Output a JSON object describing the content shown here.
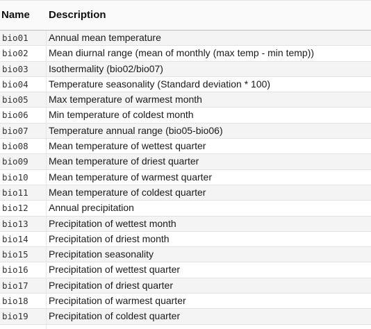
{
  "table": {
    "headers": {
      "name": "Name",
      "description": "Description"
    },
    "rows": [
      {
        "name": "bio01",
        "description": "Annual mean temperature"
      },
      {
        "name": "bio02",
        "description": "Mean diurnal range (mean of monthly (max temp - min temp))"
      },
      {
        "name": "bio03",
        "description": "Isothermality (bio02/bio07)"
      },
      {
        "name": "bio04",
        "description": "Temperature seasonality (Standard deviation * 100)"
      },
      {
        "name": "bio05",
        "description": "Max temperature of warmest month"
      },
      {
        "name": "bio06",
        "description": "Min temperature of coldest month"
      },
      {
        "name": "bio07",
        "description": "Temperature annual range (bio05-bio06)"
      },
      {
        "name": "bio08",
        "description": "Mean temperature of wettest quarter"
      },
      {
        "name": "bio09",
        "description": "Mean temperature of driest quarter"
      },
      {
        "name": "bio10",
        "description": "Mean temperature of warmest quarter"
      },
      {
        "name": "bio11",
        "description": "Mean temperature of coldest quarter"
      },
      {
        "name": "bio12",
        "description": "Annual precipitation"
      },
      {
        "name": "bio13",
        "description": "Precipitation of wettest month"
      },
      {
        "name": "bio14",
        "description": "Precipitation of driest month"
      },
      {
        "name": "bio15",
        "description": "Precipitation seasonality"
      },
      {
        "name": "bio16",
        "description": "Precipitation of wettest quarter"
      },
      {
        "name": "bio17",
        "description": "Precipitation of driest quarter"
      },
      {
        "name": "bio18",
        "description": "Precipitation of warmest quarter"
      },
      {
        "name": "bio19",
        "description": "Precipitation of coldest quarter"
      }
    ]
  }
}
